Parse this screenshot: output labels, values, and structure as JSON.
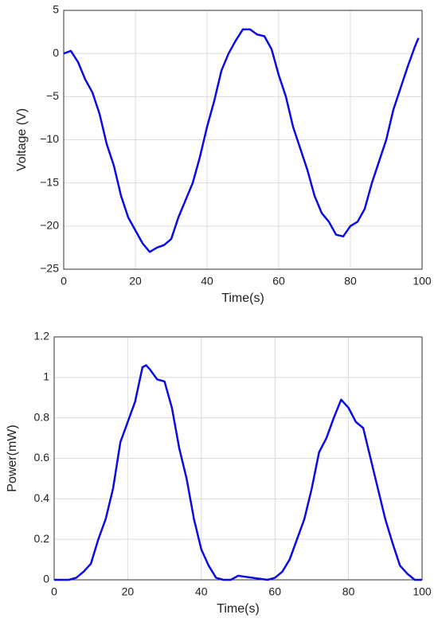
{
  "chart_data": [
    {
      "type": "line",
      "xlabel": "Time(s)",
      "ylabel": "Voltage (V)",
      "xlim": [
        0,
        100
      ],
      "xticks": [
        0,
        20,
        40,
        60,
        80,
        100
      ],
      "ylim": [
        -25,
        5
      ],
      "yticks": [
        5,
        0,
        {
          "value": -5,
          "label": "−5"
        },
        {
          "value": -10,
          "label": "−10"
        },
        {
          "value": -15,
          "label": "−15"
        },
        {
          "value": -20,
          "label": "−20"
        },
        {
          "value": -25,
          "label": "−25"
        }
      ],
      "grid": true,
      "series": [
        {
          "color": "#0a0ae6",
          "x": [
            0,
            2,
            4,
            6,
            8,
            10,
            12,
            14,
            16,
            18,
            20,
            22,
            24,
            26,
            28,
            30,
            32,
            34,
            36,
            38,
            40,
            42,
            44,
            46,
            48,
            50,
            52,
            54,
            56,
            58,
            60,
            62,
            64,
            66,
            68,
            70,
            72,
            74,
            76,
            78,
            80,
            82,
            84,
            86,
            88,
            90,
            92,
            94,
            96,
            98,
            99
          ],
          "values": [
            0,
            0.3,
            -1,
            -3,
            -4.5,
            -7,
            -10.5,
            -13,
            -16.5,
            -19,
            -20.5,
            -22,
            -23,
            -22.5,
            -22.2,
            -21.5,
            -19,
            -17,
            -15,
            -12,
            -8.5,
            -5.5,
            -2,
            0,
            1.5,
            2.8,
            2.8,
            2.2,
            2,
            0.5,
            -2.5,
            -5,
            -8.5,
            -11,
            -13.5,
            -16.5,
            -18.5,
            -19.5,
            -21,
            -21.2,
            -20,
            -19.5,
            -18,
            -15,
            -12.5,
            -10,
            -6.5,
            -4,
            -1.5,
            0.8,
            1.8
          ]
        }
      ]
    },
    {
      "type": "line",
      "xlabel": "Time(s)",
      "ylabel": "Power(mW)",
      "xlim": [
        0,
        100
      ],
      "xticks": [
        0,
        20,
        40,
        60,
        80,
        100
      ],
      "ylim": [
        0,
        1.2
      ],
      "yticks": [
        0,
        0.2,
        0.4,
        0.6,
        0.8,
        1,
        1.2
      ],
      "grid": true,
      "series": [
        {
          "color": "#0a0ae6",
          "x": [
            0,
            4,
            6,
            8,
            10,
            12,
            14,
            16,
            18,
            20,
            22,
            24,
            25,
            26,
            28,
            30,
            32,
            34,
            36,
            38,
            40,
            42,
            44,
            46,
            48,
            50,
            52,
            54,
            56,
            58,
            60,
            62,
            64,
            66,
            68,
            70,
            72,
            74,
            76,
            78,
            80,
            82,
            84,
            86,
            88,
            90,
            92,
            94,
            96,
            98,
            100
          ],
          "values": [
            0,
            0,
            0.01,
            0.04,
            0.08,
            0.2,
            0.3,
            0.45,
            0.68,
            0.78,
            0.88,
            1.05,
            1.06,
            1.04,
            0.99,
            0.98,
            0.85,
            0.65,
            0.5,
            0.3,
            0.15,
            0.07,
            0.01,
            0,
            0,
            0.02,
            0.015,
            0.01,
            0.005,
            0,
            0.01,
            0.04,
            0.1,
            0.2,
            0.3,
            0.45,
            0.63,
            0.7,
            0.8,
            0.89,
            0.85,
            0.78,
            0.75,
            0.6,
            0.45,
            0.3,
            0.18,
            0.07,
            0.03,
            0,
            0
          ]
        }
      ]
    }
  ]
}
